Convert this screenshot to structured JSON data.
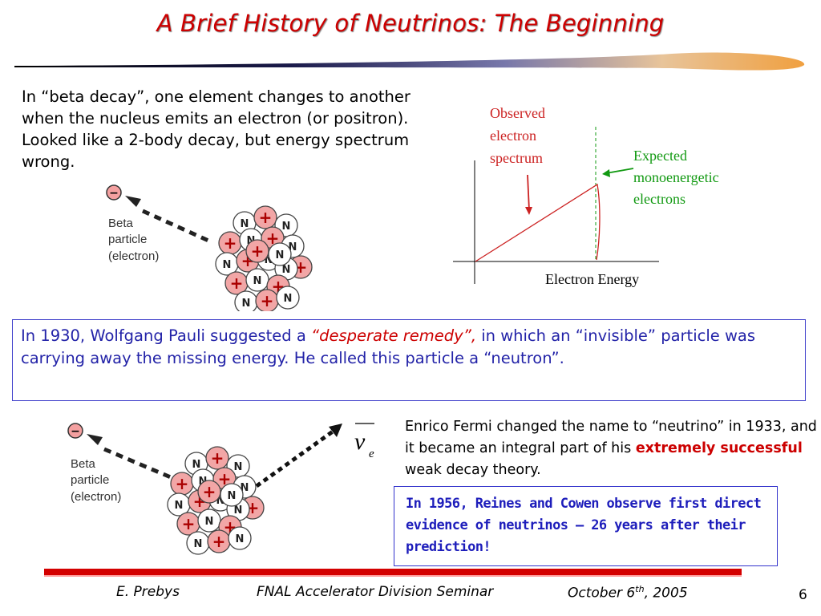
{
  "slide": {
    "title": "A Brief History of Neutrinos: The Beginning",
    "intro_text": "In “beta decay”, one element changes to another when the nucleus emits an electron (or positron). Looked like a 2-body decay, but energy spectrum wrong.",
    "diagram": {
      "electron_symbol": "−",
      "beta_label_line1": "Beta",
      "beta_label_line2": "particle",
      "beta_label_line3": "(electron)",
      "neutron_label": "N",
      "proton_label": "+"
    },
    "spectrum": {
      "observed_line1": "Observed",
      "observed_line2": "electron",
      "observed_line3": "spectrum",
      "expected_line1": "Expected",
      "expected_line2": "monoenergetic",
      "expected_line3": "electrons",
      "xlabel": "Electron Energy",
      "observed_color": "#cc2222",
      "expected_color": "#119911"
    },
    "pauli": {
      "part1": "In 1930, Wolfgang Pauli suggested a ",
      "emph": "“desperate remedy”,",
      "part2": " in which an “invisible” particle was carrying away  the missing energy. He called this particle a “neutron”."
    },
    "neutrino_symbol": "ν",
    "neutrino_subscript": "e",
    "fermi": {
      "part1": "Enrico Fermi changed the name to “neutrino” in 1933, and it became an integral part of his ",
      "emph": "extremely  successful",
      "part2": " weak decay theory."
    },
    "reines": "In 1956, Reines and Cowen observe first direct evidence of neutrinos – 26 years after their prediction!",
    "footer": {
      "author": "E. Prebys",
      "event": "FNAL Accelerator Division Seminar",
      "date_prefix": "October 6",
      "date_sup": "th",
      "date_suffix": ", 2005",
      "page": "6"
    },
    "colors": {
      "title": "#cc0000",
      "pauli_text": "#2323a8",
      "accent_red": "#cc0000"
    }
  }
}
